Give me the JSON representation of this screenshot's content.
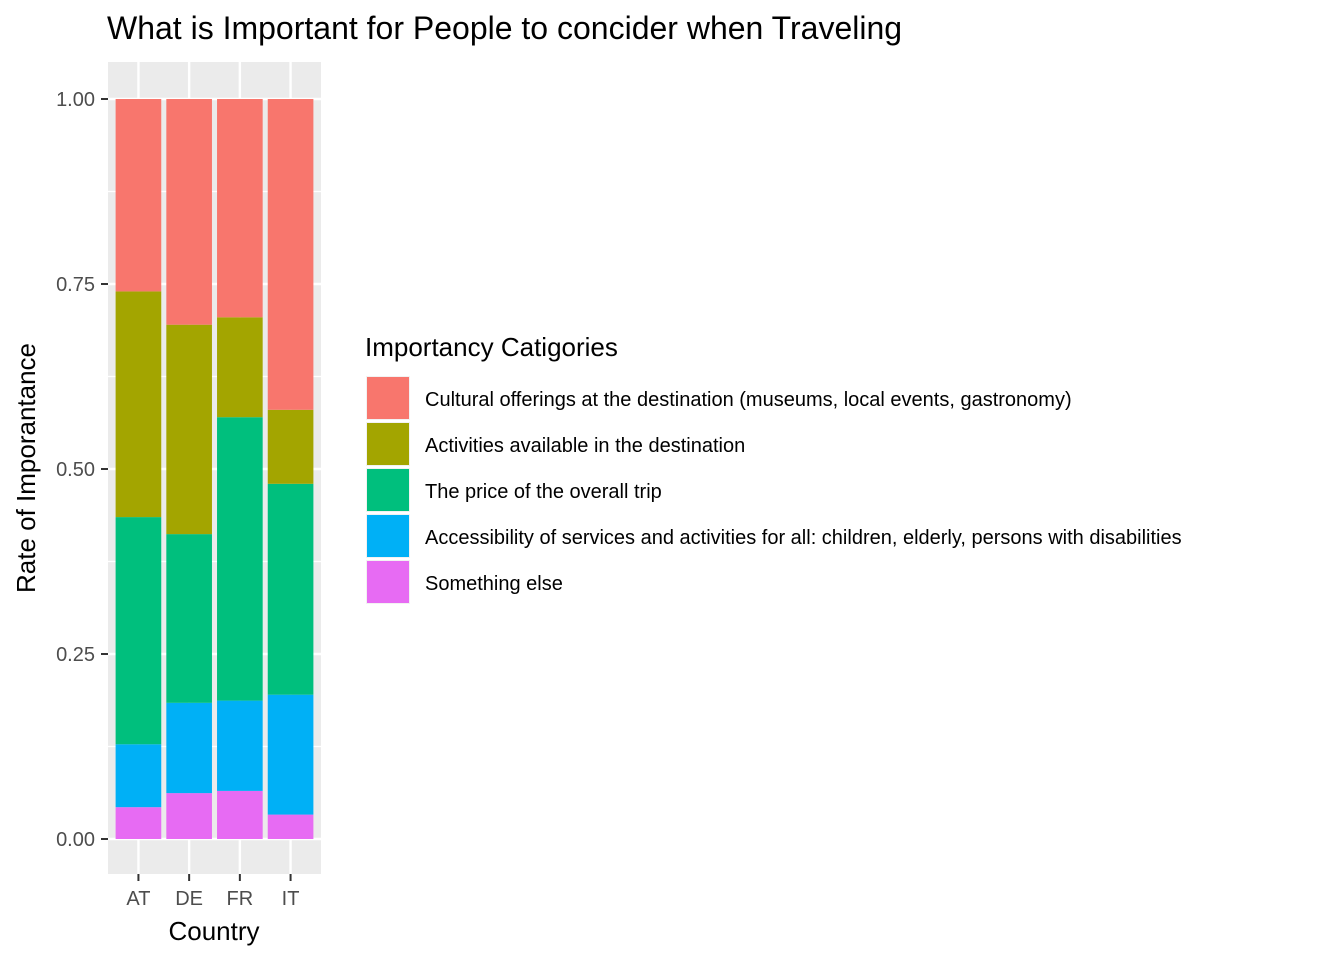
{
  "chart_data": {
    "type": "bar",
    "stacked": true,
    "title": "What is Important for People to concider when Traveling",
    "xlabel": "Country",
    "ylabel": "Rate of Imporantance",
    "categories": [
      "AT",
      "DE",
      "FR",
      "IT"
    ],
    "ylim": [
      0,
      1
    ],
    "yticks": [
      "0.00",
      "0.25",
      "0.50",
      "0.75",
      "1.00"
    ],
    "grid": true,
    "legend": {
      "title": "Importancy Catigories",
      "placement": "right"
    },
    "series": [
      {
        "name": "Cultural offerings at the destination (museums, local events, gastronomy)",
        "color": "#F8766D",
        "values": [
          0.26,
          0.305,
          0.295,
          0.42
        ]
      },
      {
        "name": "Activities available in the destination",
        "color": "#A3A500",
        "values": [
          0.305,
          0.283,
          0.135,
          0.1
        ]
      },
      {
        "name": "The price of the overall trip",
        "color": "#00BF7D",
        "values": [
          0.307,
          0.228,
          0.383,
          0.285
        ]
      },
      {
        "name": "Accessibility of services and activities for all: children, elderly, persons with disabilities",
        "color": "#00B0F6",
        "values": [
          0.085,
          0.122,
          0.122,
          0.162
        ]
      },
      {
        "name": "Something else",
        "color": "#E76BF3",
        "values": [
          0.043,
          0.062,
          0.065,
          0.033
        ]
      }
    ]
  }
}
